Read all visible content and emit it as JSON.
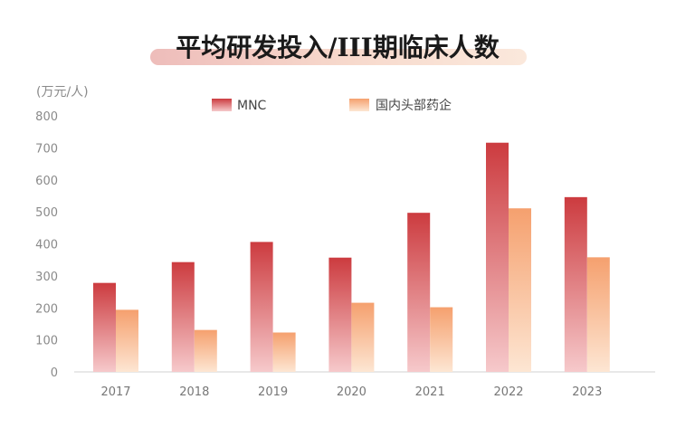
{
  "chart_data": {
    "type": "bar",
    "title": "平均研发投入/III期临床人数",
    "ylabel": "(万元/人)",
    "xlabel": "",
    "categories": [
      "2017",
      "2018",
      "2019",
      "2020",
      "2021",
      "2022",
      "2023"
    ],
    "ylim": [
      0,
      800
    ],
    "yticks": [
      0,
      100,
      200,
      300,
      400,
      500,
      600,
      700,
      800
    ],
    "grid": false,
    "legend_position": "top",
    "series": [
      {
        "name": "MNC",
        "values": [
          278,
          343,
          406,
          357,
          497,
          716,
          546
        ],
        "color_top": "#cc3b3f",
        "color_bottom": "#f6c9cb"
      },
      {
        "name": "国内头部药企",
        "values": [
          194,
          131,
          123,
          216,
          202,
          511,
          358
        ],
        "color_top": "#f5a06e",
        "color_bottom": "#fde6d3"
      }
    ]
  }
}
